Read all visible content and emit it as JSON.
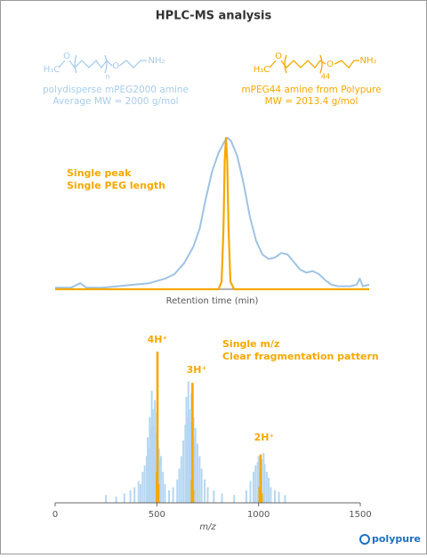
{
  "title": "HPLC-MS analysis",
  "molecules": [
    {
      "labels": [
        "H₃C",
        "O",
        "O",
        "n",
        "NH₂"
      ],
      "captions": [
        "polydisperse mPEG2000 amine",
        "Average MW = 2000 g/mol"
      ],
      "color": "#a9cdea"
    },
    {
      "labels": [
        "H₃C",
        "O",
        "O",
        "44",
        "NH₂"
      ],
      "captions": [
        "mPEG44 amine from Polypure",
        "MW = 2013.4 g/mol"
      ],
      "color": "#f5a800"
    }
  ],
  "chart_data": [
    {
      "type": "line",
      "xlabel": "Retention time (min)",
      "annotations": [
        "Single peak",
        "Single PEG length"
      ],
      "annotation_color": "#f5a800",
      "xlim": [
        0,
        100
      ],
      "ylim": [
        0,
        100
      ],
      "series": [
        {
          "color": "#9fc3e3",
          "x": [
            0,
            5,
            8,
            10,
            15,
            20,
            25,
            30,
            35,
            38,
            41,
            44,
            46,
            48,
            50,
            52,
            54,
            55,
            56,
            58,
            60,
            62,
            64,
            66,
            68,
            70,
            72,
            74,
            76,
            78,
            80,
            82,
            84,
            86,
            88,
            90,
            92,
            94,
            96,
            97,
            98,
            100
          ],
          "values": [
            1,
            1,
            4,
            1,
            1,
            2,
            3,
            4,
            7,
            10,
            17,
            28,
            40,
            60,
            78,
            90,
            98,
            100,
            98,
            88,
            70,
            48,
            32,
            23,
            20,
            21,
            24,
            23,
            18,
            13,
            11,
            12,
            10,
            6,
            3,
            2,
            2,
            2,
            3,
            7,
            2,
            3
          ]
        },
        {
          "color": "#f5a800",
          "x": [
            0,
            52,
            53,
            53.6,
            54,
            54.4,
            54.8,
            55.2,
            55.8,
            57,
            100
          ],
          "values": [
            0,
            0,
            5,
            40,
            85,
            100,
            85,
            40,
            5,
            0,
            0
          ]
        }
      ]
    },
    {
      "type": "bar",
      "xlabel": "m/z",
      "xlim": [
        0,
        1500
      ],
      "xticks": [
        0,
        500,
        1000,
        1500
      ],
      "ylim": [
        0,
        100
      ],
      "peak_labels": [
        "4H⁺",
        "3H⁺",
        "2H⁺"
      ],
      "annotations": [
        "Single m/z",
        "Clear fragmentation pattern"
      ],
      "annotation_color": "#f5a800",
      "series": [
        {
          "color": "#b5d7f2",
          "x": [
            250,
            300,
            340,
            370,
            390,
            410,
            420,
            430,
            440,
            450,
            455,
            460,
            465,
            470,
            475,
            480,
            485,
            490,
            495,
            500,
            505,
            510,
            515,
            520,
            530,
            540,
            560,
            580,
            600,
            610,
            620,
            630,
            640,
            645,
            650,
            655,
            660,
            665,
            670,
            680,
            685,
            690,
            700,
            710,
            720,
            735,
            750,
            780,
            820,
            880,
            940,
            960,
            975,
            985,
            995,
            1000,
            1005,
            1015,
            1025,
            1030,
            1040,
            1050,
            1060,
            1080,
            1100,
            1130
          ],
          "values": [
            5,
            4,
            6,
            8,
            10,
            14,
            12,
            20,
            24,
            30,
            42,
            35,
            55,
            48,
            72,
            60,
            50,
            66,
            45,
            58,
            40,
            35,
            28,
            30,
            20,
            12,
            8,
            10,
            15,
            22,
            30,
            40,
            50,
            68,
            55,
            78,
            60,
            52,
            70,
            55,
            42,
            48,
            38,
            30,
            22,
            15,
            10,
            8,
            6,
            5,
            8,
            14,
            20,
            24,
            26,
            30,
            22,
            28,
            32,
            25,
            20,
            16,
            10,
            8,
            7,
            5
          ]
        },
        {
          "color": "#f5a800",
          "x": [
            500,
            503,
            507,
            672,
            675,
            678,
            1005,
            1010,
            1015
          ],
          "values": [
            20,
            97,
            12,
            15,
            77,
            8,
            10,
            31,
            6
          ]
        }
      ]
    }
  ],
  "logo": "polypure"
}
